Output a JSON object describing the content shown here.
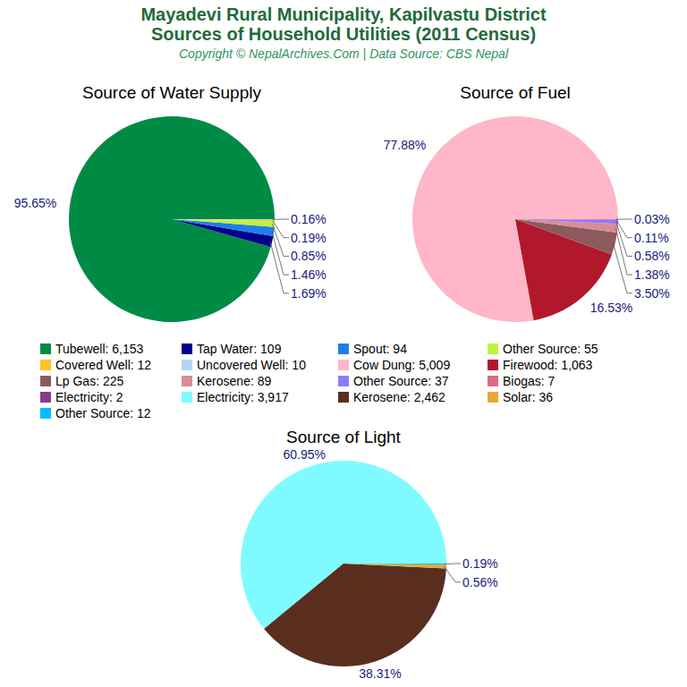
{
  "header": {
    "title": [
      "Mayadevi Rural Municipality, Kapilvastu District",
      "Sources of Household Utilities (2011 Census)"
    ],
    "subtitle": "Copyright © NepalArchives.Com | Data Source: CBS Nepal"
  },
  "chart_data": [
    {
      "type": "pie",
      "title": "Source of Water Supply",
      "legend_labels": [
        "Tubewell: 6,153",
        "Tap Water: 109",
        "Spout: 94",
        "Other Source: 55",
        "Covered Well: 12",
        "Uncovered Well: 10"
      ],
      "values": [
        6153,
        109,
        94,
        55,
        12,
        10
      ],
      "colors": [
        "#008b45",
        "#00008b",
        "#1e7fe6",
        "#b8f53c",
        "#ffc125",
        "#b5d3f2"
      ],
      "percent_labels": [
        "95.65%",
        "1.69%",
        "1.46%",
        "0.85%",
        "0.19%",
        "0.16%"
      ]
    },
    {
      "type": "pie",
      "title": "Source of Fuel",
      "legend_labels": [
        "Cow Dung: 5,009",
        "Firewood: 1,063",
        "Lp Gas: 225",
        "Kerosene: 89",
        "Other Source: 37",
        "Biogas: 7",
        "Electricity: 2"
      ],
      "values": [
        5009,
        1063,
        225,
        89,
        37,
        7,
        2
      ],
      "colors": [
        "#ffb6c8",
        "#b2182b",
        "#8c5a5e",
        "#d98c96",
        "#8c7cff",
        "#d96a8c",
        "#8b3a8b"
      ],
      "percent_labels": [
        "77.88%",
        "16.53%",
        "3.50%",
        "1.38%",
        "0.58%",
        "0.11%",
        "0.03%"
      ]
    },
    {
      "type": "pie",
      "title": "Source of Light",
      "legend_labels": [
        "Electricity: 3,917",
        "Kerosene: 2,462",
        "Solar: 36",
        "Other Source: 12"
      ],
      "values": [
        3917,
        2462,
        36,
        12
      ],
      "colors": [
        "#7ffbff",
        "#5a2e1e",
        "#e8a838",
        "#00bfff"
      ],
      "percent_labels": [
        "60.95%",
        "38.31%",
        "0.56%",
        "0.19%"
      ]
    }
  ]
}
